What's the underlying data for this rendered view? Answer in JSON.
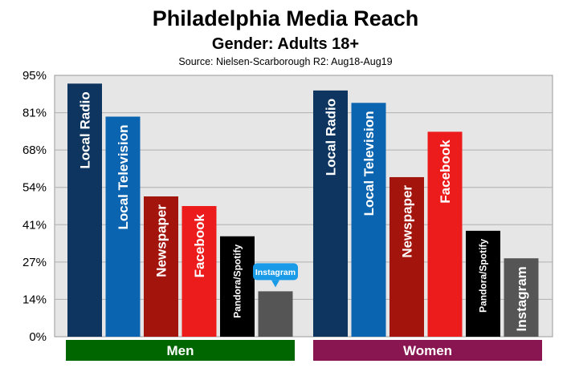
{
  "chart_data": {
    "type": "bar",
    "title": "Philadelphia Media Reach",
    "subtitle": "Gender: Adults 18+",
    "source": "Source: Nielsen-Scarborough R2: Aug18-Aug19",
    "y_tick_labels": [
      "0%",
      "14%",
      "27%",
      "41%",
      "54%",
      "68%",
      "81%",
      "95%"
    ],
    "ylim": [
      0,
      95
    ],
    "grid": true,
    "groups": [
      {
        "name": "Men",
        "color": "#006600",
        "bars": [
          {
            "label": "Local Radio",
            "value": 92,
            "color": "#0e3560"
          },
          {
            "label": "Local Television",
            "value": 80,
            "color": "#0b64b0"
          },
          {
            "label": "Newspaper",
            "value": 51,
            "color": "#a3150c"
          },
          {
            "label": "Facebook",
            "value": 47.5,
            "color": "#ec1c1c"
          },
          {
            "label": "Pandora/Spotify",
            "value": 36.5,
            "color": "#000000"
          },
          {
            "label": "Instagram",
            "value": 16.5,
            "color": "#555555"
          }
        ]
      },
      {
        "name": "Women",
        "color": "#8a1651",
        "bars": [
          {
            "label": "Local Radio",
            "value": 89.5,
            "color": "#0e3560"
          },
          {
            "label": "Local Television",
            "value": 85,
            "color": "#0b64b0"
          },
          {
            "label": "Newspaper",
            "value": 58,
            "color": "#a3150c"
          },
          {
            "label": "Facebook",
            "value": 74.5,
            "color": "#ec1c1c"
          },
          {
            "label": "Pandora/Spotify",
            "value": 38.5,
            "color": "#000000"
          },
          {
            "label": "Instagram",
            "value": 28.5,
            "color": "#555555"
          }
        ]
      }
    ],
    "annotation": {
      "text": "Instagram",
      "color": "#1a9be8"
    }
  }
}
